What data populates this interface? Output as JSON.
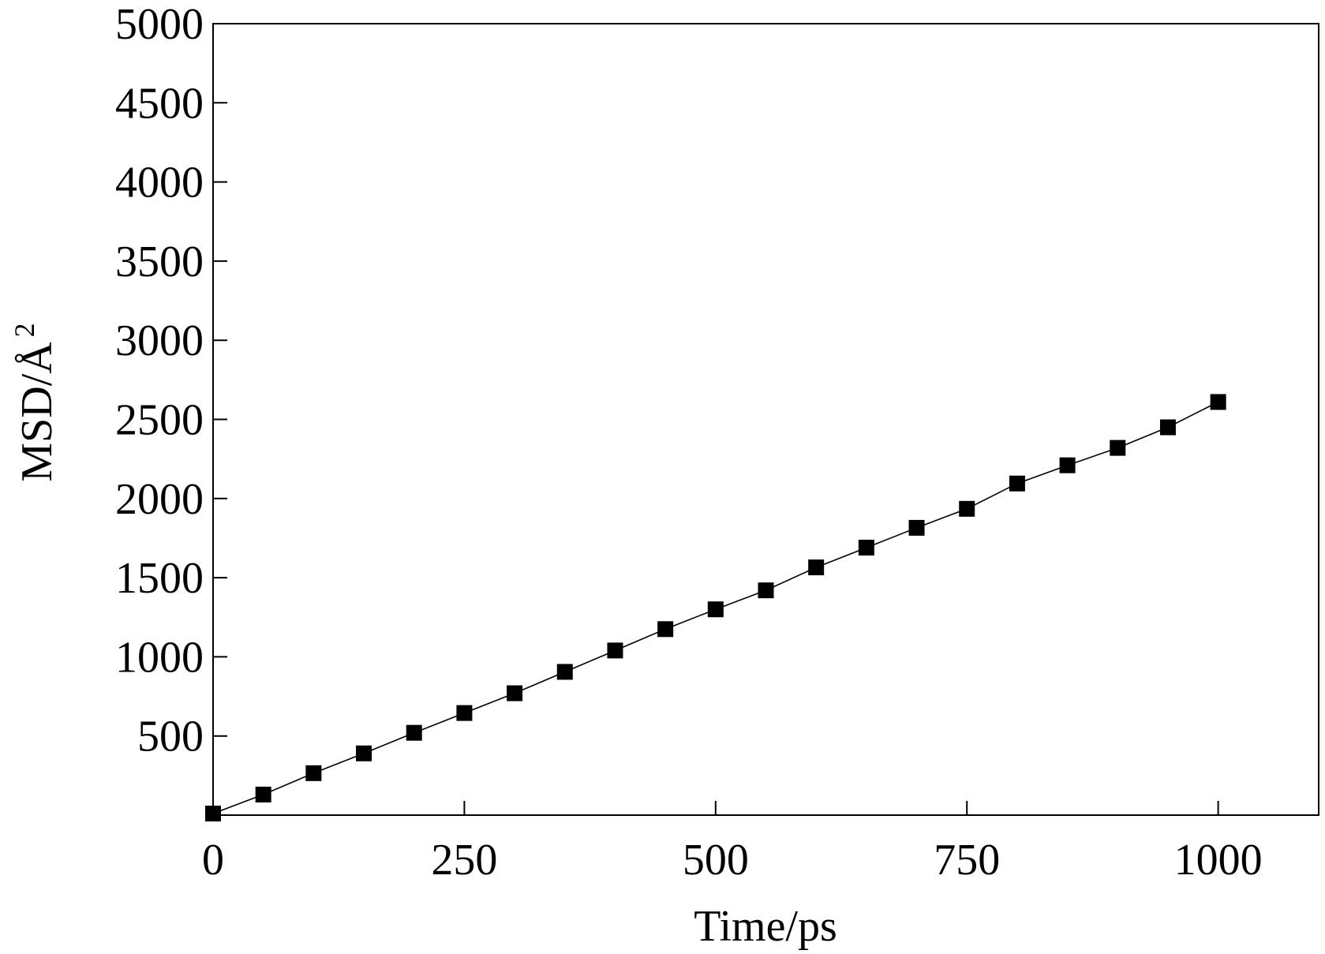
{
  "chart_data": {
    "type": "line",
    "title": "",
    "xlabel": "Time/ps",
    "ylabel": "MSD/Å",
    "ylabel_superscript": "2",
    "xlim": [
      0,
      1100
    ],
    "ylim": [
      0,
      5000
    ],
    "x_ticks": [
      0,
      250,
      500,
      750,
      1000
    ],
    "x_tick_labels": [
      "0",
      "250",
      "500",
      "750",
      "1000"
    ],
    "y_ticks": [
      500,
      1000,
      1500,
      2000,
      2500,
      3000,
      3500,
      4000,
      4500,
      5000
    ],
    "y_tick_labels": [
      "500",
      "1000",
      "1500",
      "2000",
      "2500",
      "3000",
      "3500",
      "4000",
      "4500",
      "5000"
    ],
    "grid": false,
    "legend": "none",
    "marker": "filled-square",
    "colors": {
      "series": "#000000",
      "axes": "#000000",
      "background": "#ffffff"
    },
    "series": [
      {
        "x": [
          0,
          50,
          100,
          150,
          200,
          250,
          300,
          350,
          400,
          450,
          500,
          550,
          600,
          650,
          700,
          750,
          800,
          850,
          900,
          950,
          1000
        ],
        "y": [
          10,
          130,
          265,
          390,
          520,
          645,
          770,
          905,
          1040,
          1175,
          1300,
          1420,
          1565,
          1690,
          1815,
          1935,
          2095,
          2210,
          2320,
          2450,
          2610
        ]
      }
    ]
  }
}
